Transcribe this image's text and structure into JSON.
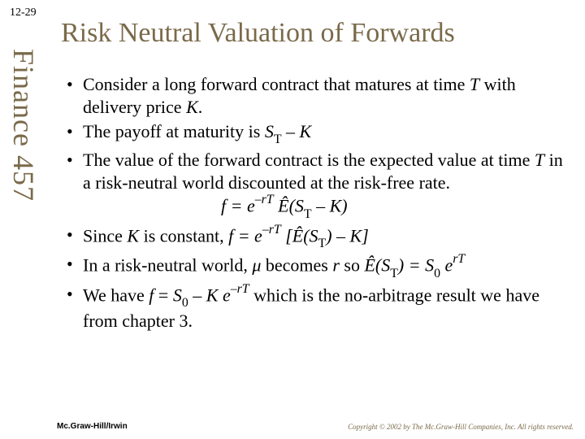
{
  "slide": {
    "number": "12-29",
    "sidebar": "Finance 457",
    "title": "Risk Neutral Valuation of Forwards",
    "colors": {
      "accent": "#7a6a4a",
      "text": "#000000",
      "background": "#ffffff"
    },
    "fonts": {
      "title_size_pt": 34,
      "sidebar_size_pt": 36,
      "body_size_pt": 22,
      "footer_left_size_pt": 10,
      "footer_right_size_pt": 9,
      "family": "Times New Roman"
    },
    "bullets": {
      "b1_a": "Consider a long forward contract that matures at time ",
      "b1_T": "T",
      "b1_b": " with delivery price ",
      "b1_K": "K",
      "b1_c": ".",
      "b2_a": "The payoff at maturity is ",
      "b2_ST": "S",
      "b2_Tsub": "T",
      "b2_minusK": " – K",
      "b3_a": "The value of the forward contract is the expected value at time ",
      "b3_T": "T",
      "b3_b": " in a risk-neutral world discounted at the risk-free rate.",
      "formula1_a": "f = e",
      "formula1_sup": "–rT",
      "formula1_b": " Ê(S",
      "formula1_Tsub": "T",
      "formula1_c": " – K)",
      "b4_a": "Since ",
      "b4_K": "K",
      "b4_b": " is constant,     ",
      "b4_f": "f = e",
      "b4_sup": "–rT",
      "b4_c": " [Ê(S",
      "b4_Tsub": "T",
      "b4_d": ") – K]",
      "b5_a": "In a risk-neutral world, ",
      "b5_mu": "μ",
      "b5_b": " becomes ",
      "b5_r": "r",
      "b5_c": " so ",
      "b5_Ehat": "Ê(S",
      "b5_Tsub": "T",
      "b5_d": ") = S",
      "b5_0sub": "0",
      "b5_e": " e",
      "b5_sup": "rT",
      "b6_a": "We have ",
      "b6_f": "f",
      "b6_b": " = ",
      "b6_S": "S",
      "b6_0sub": "0",
      "b6_c": " – ",
      "b6_K": "K e",
      "b6_sup": "–rT",
      "b6_d": " which is the no-arbitrage result we have from chapter 3."
    },
    "footer": {
      "left": "Mc.Graw-Hill/Irwin",
      "right": "Copyright © 2002 by The Mc.Graw-Hill Companies, Inc.  All rights reserved."
    }
  }
}
